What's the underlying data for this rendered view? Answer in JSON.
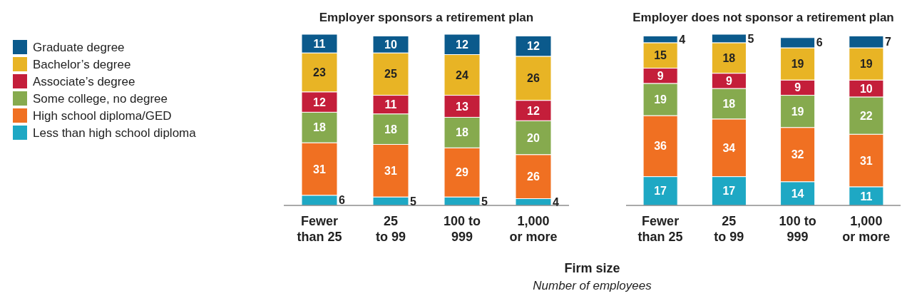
{
  "chart_data": [
    {
      "type": "bar",
      "stacked": true,
      "title": "Employer sponsors a retirement plan",
      "xlabel": "Firm size",
      "annotations": [
        "Number of employees"
      ],
      "categories": [
        "Fewer\nthan 25",
        "25\nto 99",
        "100 to\n999",
        "1,000\nor more"
      ],
      "ylim": [
        0,
        101
      ],
      "tick_labels": "x",
      "data_labels": true,
      "legend": "left",
      "series": [
        {
          "name": "Less than high school diploma",
          "color": "#1ea8c4",
          "values": [
            6,
            5,
            5,
            4
          ]
        },
        {
          "name": "High school diploma/GED",
          "color": "#f07022",
          "values": [
            31,
            31,
            29,
            26
          ]
        },
        {
          "name": "Some college, no degree",
          "color": "#86aa4e",
          "values": [
            18,
            18,
            18,
            20
          ]
        },
        {
          "name": "Associate’s degree",
          "color": "#c41e3a",
          "values": [
            12,
            11,
            13,
            12
          ]
        },
        {
          "name": "Bachelor’s degree",
          "color": "#e8b425",
          "values": [
            23,
            25,
            24,
            26
          ]
        },
        {
          "name": "Graduate degree",
          "color": "#0b5a8c",
          "values": [
            11,
            10,
            12,
            12
          ]
        }
      ]
    },
    {
      "type": "bar",
      "stacked": true,
      "title": "Employer does not sponsor a retirement plan",
      "categories": [
        "Fewer\nthan 25",
        "25\nto 99",
        "100 to\n999",
        "1,000\nor more"
      ],
      "ylim": [
        0,
        101
      ],
      "tick_labels": "x",
      "data_labels": true,
      "series": [
        {
          "color": "#1ea8c4",
          "values": [
            17,
            17,
            14,
            11
          ]
        },
        {
          "color": "#f07022",
          "values": [
            36,
            34,
            32,
            31
          ]
        },
        {
          "color": "#86aa4e",
          "values": [
            19,
            18,
            19,
            22
          ]
        },
        {
          "color": "#c41e3a",
          "values": [
            9,
            9,
            9,
            10
          ]
        },
        {
          "color": "#e8b425",
          "values": [
            15,
            18,
            19,
            19
          ]
        },
        {
          "color": "#0b5a8c",
          "values": [
            4,
            5,
            6,
            7
          ]
        }
      ]
    }
  ]
}
